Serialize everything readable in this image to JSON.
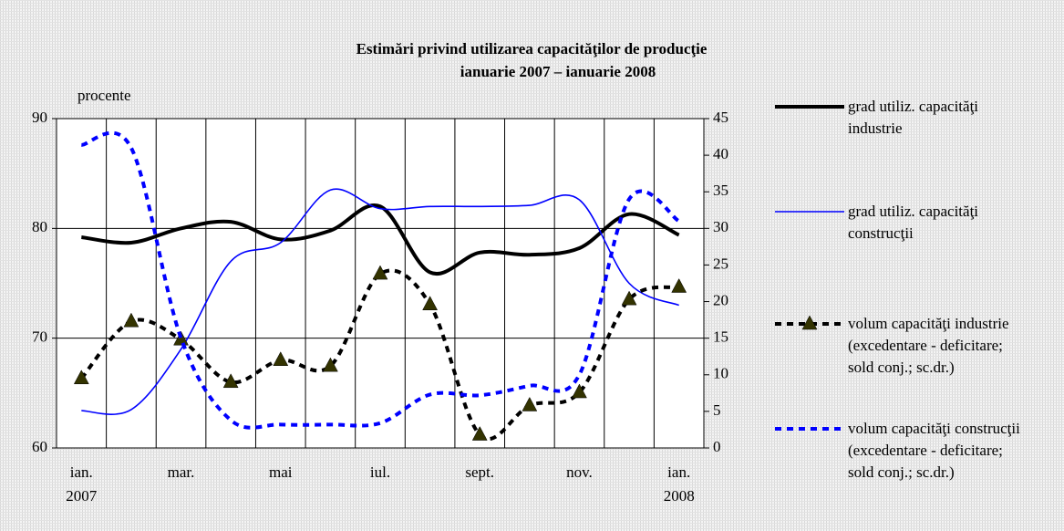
{
  "chart_data": {
    "type": "line",
    "title": "Estimări privind utilizarea capacităţilor de producţie",
    "subtitle": "ianuarie 2007 – ianuarie 2008",
    "y_label": "procente",
    "categories": [
      "ian. 2007",
      null,
      "mar.",
      null,
      "mai",
      null,
      "iul.",
      null,
      "sept.",
      null,
      "nov.",
      null,
      "ian. 2008"
    ],
    "ylim": [
      60,
      90
    ],
    "yticks": [
      60,
      70,
      80,
      90
    ],
    "y2lim": [
      0,
      45
    ],
    "y2ticks": [
      0,
      5,
      10,
      15,
      20,
      25,
      30,
      35,
      40,
      45
    ],
    "series": [
      {
        "name": "grad utiliz. capacităţi industrie",
        "color": "#000000",
        "width": 4,
        "dash": false,
        "values": [
          79.2,
          78.7,
          80,
          80.6,
          79,
          79.8,
          82,
          76,
          77.8,
          77.6,
          78.2,
          81.3,
          79.4
        ]
      },
      {
        "name": "grad utiliz. capacităţi construcţii",
        "color": "#0000ff",
        "width": 1.6,
        "dash": false,
        "values": [
          63.4,
          63.5,
          69,
          77,
          78.7,
          83.5,
          81.8,
          82,
          82,
          82.1,
          82.6,
          75,
          73
        ]
      },
      {
        "name": "volum capacităţi industrie (excedentare - deficitare; sold conj.; sc.dr.)",
        "color": "#000000",
        "marker_color": "#333300",
        "marker": "triangle",
        "width": 4,
        "dash": true,
        "axis": "y2",
        "values": [
          9.5,
          17.3,
          14.8,
          9,
          12,
          11.2,
          23.8,
          19.6,
          1.8,
          5.8,
          7.6,
          20.3,
          22
        ]
      },
      {
        "name": "volum capacităţi construcţii (excedentare - deficitare; sold conj.; sc.dr.)",
        "color": "#0000ff",
        "width": 4,
        "dash": true,
        "axis": "y2",
        "values": [
          41.4,
          41,
          15,
          3.8,
          3.2,
          3.2,
          3.4,
          7.3,
          7.2,
          8.5,
          10,
          34,
          31
        ]
      }
    ]
  }
}
